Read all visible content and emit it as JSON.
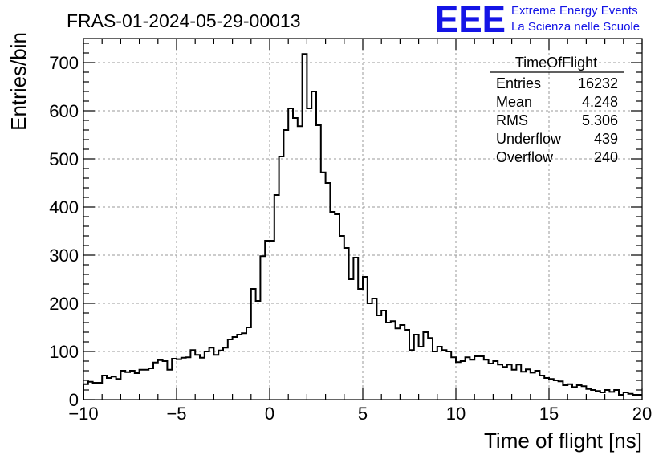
{
  "chart_data": {
    "type": "histogram",
    "title": "FRAS-01-2024-05-29-00013",
    "xlabel": "Time of flight [ns]",
    "ylabel": "Entries/bin",
    "xlim": [
      -10,
      20
    ],
    "ylim": [
      0,
      750
    ],
    "x_ticks": [
      -10,
      -5,
      0,
      5,
      10,
      15,
      20
    ],
    "x_tick_labels": [
      "−10",
      "−5",
      "0",
      "5",
      "10",
      "15",
      "20"
    ],
    "y_ticks": [
      0,
      100,
      200,
      300,
      400,
      500,
      600,
      700
    ],
    "y_tick_labels": [
      "0",
      "100",
      "200",
      "300",
      "400",
      "500",
      "600",
      "700"
    ],
    "grid": true,
    "bin_width": 0.25,
    "bin_start": -10,
    "values": [
      32,
      37,
      35,
      35,
      50,
      45,
      48,
      43,
      60,
      57,
      60,
      55,
      62,
      62,
      65,
      77,
      82,
      80,
      62,
      85,
      84,
      87,
      88,
      103,
      93,
      87,
      100,
      108,
      93,
      102,
      108,
      125,
      130,
      135,
      138,
      150,
      230,
      205,
      298,
      330,
      330,
      425,
      505,
      560,
      605,
      585,
      568,
      718,
      605,
      640,
      570,
      472,
      450,
      390,
      385,
      340,
      315,
      250,
      295,
      230,
      255,
      200,
      210,
      175,
      185,
      160,
      163,
      148,
      155,
      145,
      103,
      135,
      110,
      140,
      128,
      100,
      110,
      103,
      100,
      88,
      78,
      80,
      88,
      83,
      90,
      90,
      83,
      75,
      80,
      73,
      68,
      73,
      62,
      73,
      58,
      63,
      56,
      60,
      50,
      45,
      43,
      40,
      38,
      30,
      32,
      26,
      30,
      28,
      22,
      20,
      18,
      15,
      20,
      16,
      20,
      10,
      15,
      12,
      10,
      10
    ],
    "stats": {
      "title": "TimeOfFlight",
      "rows": [
        {
          "label": "Entries",
          "value": "16232"
        },
        {
          "label": "Mean",
          "value": "4.248"
        },
        {
          "label": "RMS",
          "value": "5.306"
        },
        {
          "label": "Underflow",
          "value": "439"
        },
        {
          "label": "Overflow",
          "value": "240"
        }
      ]
    }
  },
  "logo": {
    "mark": "EEE",
    "line1": "Extreme Energy Events",
    "line2": "La Scienza nelle Scuole",
    "color": "#1414e6"
  }
}
